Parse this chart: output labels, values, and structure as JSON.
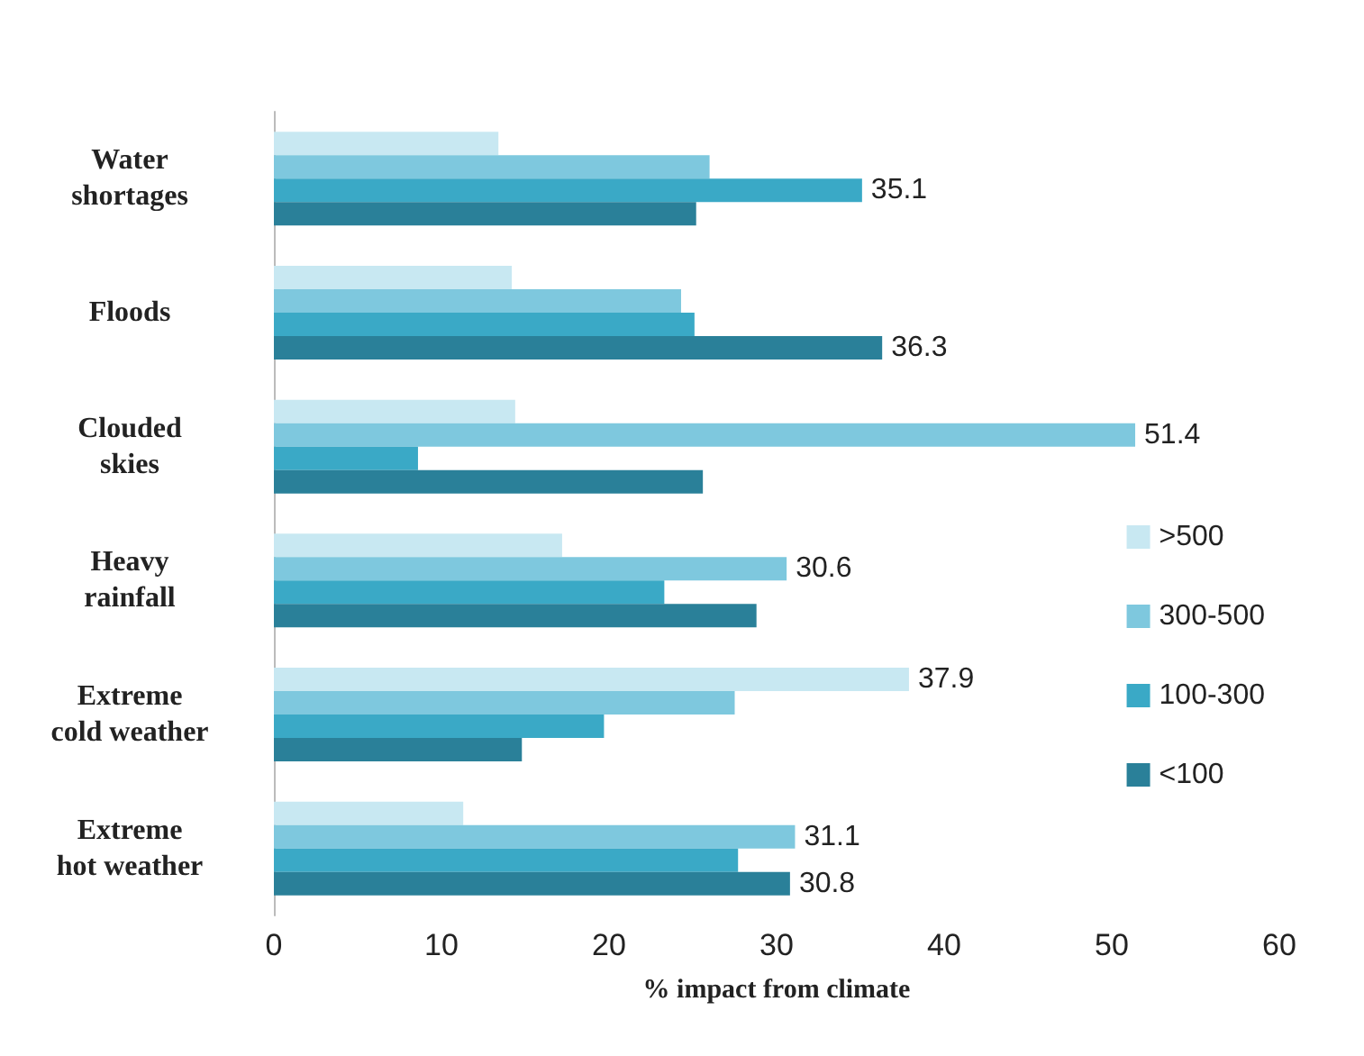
{
  "chart_data": {
    "type": "bar",
    "orientation": "horizontal",
    "xlabel": "% impact from climate",
    "categories": [
      "Water\nshortages",
      "Floods",
      "Clouded\nskies",
      "Heavy\nrainfall",
      "Extreme\ncold weather",
      "Extreme\nhot weather"
    ],
    "series": [
      {
        "name": ">500",
        "color": "#c8e8f2",
        "values": [
          13.4,
          14.2,
          14.4,
          17.2,
          37.9,
          11.3
        ],
        "value_labels": [
          null,
          null,
          null,
          null,
          "37.9",
          null
        ]
      },
      {
        "name": "300-500",
        "color": "#7ec8de",
        "values": [
          26.0,
          24.3,
          51.4,
          30.6,
          27.5,
          31.1
        ],
        "value_labels": [
          null,
          null,
          "51.4",
          "30.6",
          null,
          "31.1"
        ]
      },
      {
        "name": "100-300",
        "color": "#3aa9c6",
        "values": [
          35.1,
          25.1,
          8.6,
          23.3,
          19.7,
          27.7
        ],
        "value_labels": [
          "35.1",
          null,
          null,
          null,
          null,
          null
        ]
      },
      {
        "name": "<100",
        "color": "#2a8099",
        "values": [
          25.2,
          36.3,
          25.6,
          28.8,
          14.8,
          30.8
        ],
        "value_labels": [
          null,
          "36.3",
          null,
          null,
          null,
          "30.8"
        ]
      }
    ],
    "xlim": [
      0,
      60
    ],
    "xticks": [
      0,
      10,
      20,
      30,
      40,
      50,
      60
    ],
    "grid": false,
    "legend": "right"
  }
}
